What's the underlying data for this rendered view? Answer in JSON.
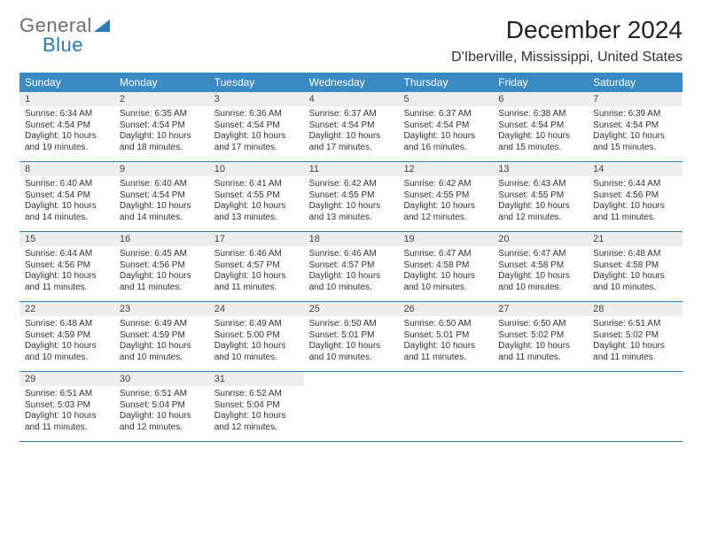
{
  "logo": {
    "word1": "General",
    "word2": "Blue"
  },
  "title": "December 2024",
  "location": "D'Iberville, Mississippi, United States",
  "header_bg": "#3a8ac4",
  "header_fg": "#ffffff",
  "rule_color": "#2a7ab8",
  "daynum_bg": "#eeeeee",
  "dow": [
    "Sunday",
    "Monday",
    "Tuesday",
    "Wednesday",
    "Thursday",
    "Friday",
    "Saturday"
  ],
  "days": [
    {
      "n": "1",
      "sr": "Sunrise: 6:34 AM",
      "ss": "Sunset: 4:54 PM",
      "dl": "Daylight: 10 hours and 19 minutes."
    },
    {
      "n": "2",
      "sr": "Sunrise: 6:35 AM",
      "ss": "Sunset: 4:54 PM",
      "dl": "Daylight: 10 hours and 18 minutes."
    },
    {
      "n": "3",
      "sr": "Sunrise: 6:36 AM",
      "ss": "Sunset: 4:54 PM",
      "dl": "Daylight: 10 hours and 17 minutes."
    },
    {
      "n": "4",
      "sr": "Sunrise: 6:37 AM",
      "ss": "Sunset: 4:54 PM",
      "dl": "Daylight: 10 hours and 17 minutes."
    },
    {
      "n": "5",
      "sr": "Sunrise: 6:37 AM",
      "ss": "Sunset: 4:54 PM",
      "dl": "Daylight: 10 hours and 16 minutes."
    },
    {
      "n": "6",
      "sr": "Sunrise: 6:38 AM",
      "ss": "Sunset: 4:54 PM",
      "dl": "Daylight: 10 hours and 15 minutes."
    },
    {
      "n": "7",
      "sr": "Sunrise: 6:39 AM",
      "ss": "Sunset: 4:54 PM",
      "dl": "Daylight: 10 hours and 15 minutes."
    },
    {
      "n": "8",
      "sr": "Sunrise: 6:40 AM",
      "ss": "Sunset: 4:54 PM",
      "dl": "Daylight: 10 hours and 14 minutes."
    },
    {
      "n": "9",
      "sr": "Sunrise: 6:40 AM",
      "ss": "Sunset: 4:54 PM",
      "dl": "Daylight: 10 hours and 14 minutes."
    },
    {
      "n": "10",
      "sr": "Sunrise: 6:41 AM",
      "ss": "Sunset: 4:55 PM",
      "dl": "Daylight: 10 hours and 13 minutes."
    },
    {
      "n": "11",
      "sr": "Sunrise: 6:42 AM",
      "ss": "Sunset: 4:55 PM",
      "dl": "Daylight: 10 hours and 13 minutes."
    },
    {
      "n": "12",
      "sr": "Sunrise: 6:42 AM",
      "ss": "Sunset: 4:55 PM",
      "dl": "Daylight: 10 hours and 12 minutes."
    },
    {
      "n": "13",
      "sr": "Sunrise: 6:43 AM",
      "ss": "Sunset: 4:55 PM",
      "dl": "Daylight: 10 hours and 12 minutes."
    },
    {
      "n": "14",
      "sr": "Sunrise: 6:44 AM",
      "ss": "Sunset: 4:56 PM",
      "dl": "Daylight: 10 hours and 11 minutes."
    },
    {
      "n": "15",
      "sr": "Sunrise: 6:44 AM",
      "ss": "Sunset: 4:56 PM",
      "dl": "Daylight: 10 hours and 11 minutes."
    },
    {
      "n": "16",
      "sr": "Sunrise: 6:45 AM",
      "ss": "Sunset: 4:56 PM",
      "dl": "Daylight: 10 hours and 11 minutes."
    },
    {
      "n": "17",
      "sr": "Sunrise: 6:46 AM",
      "ss": "Sunset: 4:57 PM",
      "dl": "Daylight: 10 hours and 11 minutes."
    },
    {
      "n": "18",
      "sr": "Sunrise: 6:46 AM",
      "ss": "Sunset: 4:57 PM",
      "dl": "Daylight: 10 hours and 10 minutes."
    },
    {
      "n": "19",
      "sr": "Sunrise: 6:47 AM",
      "ss": "Sunset: 4:58 PM",
      "dl": "Daylight: 10 hours and 10 minutes."
    },
    {
      "n": "20",
      "sr": "Sunrise: 6:47 AM",
      "ss": "Sunset: 4:58 PM",
      "dl": "Daylight: 10 hours and 10 minutes."
    },
    {
      "n": "21",
      "sr": "Sunrise: 6:48 AM",
      "ss": "Sunset: 4:58 PM",
      "dl": "Daylight: 10 hours and 10 minutes."
    },
    {
      "n": "22",
      "sr": "Sunrise: 6:48 AM",
      "ss": "Sunset: 4:59 PM",
      "dl": "Daylight: 10 hours and 10 minutes."
    },
    {
      "n": "23",
      "sr": "Sunrise: 6:49 AM",
      "ss": "Sunset: 4:59 PM",
      "dl": "Daylight: 10 hours and 10 minutes."
    },
    {
      "n": "24",
      "sr": "Sunrise: 6:49 AM",
      "ss": "Sunset: 5:00 PM",
      "dl": "Daylight: 10 hours and 10 minutes."
    },
    {
      "n": "25",
      "sr": "Sunrise: 6:50 AM",
      "ss": "Sunset: 5:01 PM",
      "dl": "Daylight: 10 hours and 10 minutes."
    },
    {
      "n": "26",
      "sr": "Sunrise: 6:50 AM",
      "ss": "Sunset: 5:01 PM",
      "dl": "Daylight: 10 hours and 11 minutes."
    },
    {
      "n": "27",
      "sr": "Sunrise: 6:50 AM",
      "ss": "Sunset: 5:02 PM",
      "dl": "Daylight: 10 hours and 11 minutes."
    },
    {
      "n": "28",
      "sr": "Sunrise: 6:51 AM",
      "ss": "Sunset: 5:02 PM",
      "dl": "Daylight: 10 hours and 11 minutes."
    },
    {
      "n": "29",
      "sr": "Sunrise: 6:51 AM",
      "ss": "Sunset: 5:03 PM",
      "dl": "Daylight: 10 hours and 11 minutes."
    },
    {
      "n": "30",
      "sr": "Sunrise: 6:51 AM",
      "ss": "Sunset: 5:04 PM",
      "dl": "Daylight: 10 hours and 12 minutes."
    },
    {
      "n": "31",
      "sr": "Sunrise: 6:52 AM",
      "ss": "Sunset: 5:04 PM",
      "dl": "Daylight: 10 hours and 12 minutes."
    }
  ]
}
